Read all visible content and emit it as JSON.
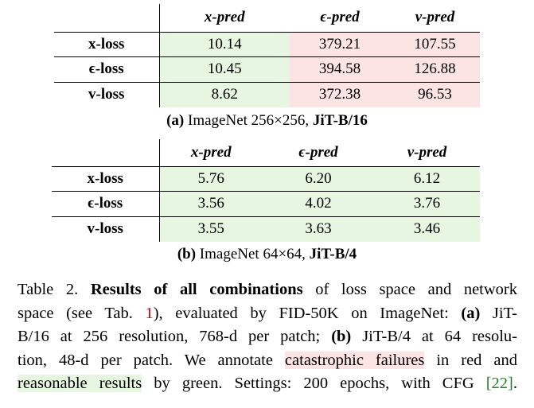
{
  "tables": [
    {
      "headers": [
        "x-pred",
        "ϵ-pred",
        "v-pred"
      ],
      "rows": [
        {
          "label": "x-loss",
          "cells": [
            "10.14",
            "379.21",
            "107.55"
          ]
        },
        {
          "label": "ϵ-loss",
          "cells": [
            "10.45",
            "394.58",
            "126.88"
          ]
        },
        {
          "label": "v-loss",
          "cells": [
            "8.62",
            "372.38",
            "96.53"
          ]
        }
      ],
      "cell_colors": [
        [
          "#e6f6e1",
          "#fde4e4",
          "#fde4e4"
        ],
        [
          "#e6f6e1",
          "#fde4e4",
          "#fde4e4"
        ],
        [
          "#e6f6e1",
          "#fde4e4",
          "#fde4e4"
        ]
      ],
      "caption": [
        "(a)",
        " ImageNet 256×256, ",
        "JiT-B/16"
      ]
    },
    {
      "headers": [
        "x-pred",
        "ϵ-pred",
        "v-pred"
      ],
      "rows": [
        {
          "label": "x-loss",
          "cells": [
            "5.76",
            "6.20",
            "6.12"
          ]
        },
        {
          "label": "ϵ-loss",
          "cells": [
            "3.56",
            "4.02",
            "3.76"
          ]
        },
        {
          "label": "v-loss",
          "cells": [
            "3.55",
            "3.63",
            "3.46"
          ]
        }
      ],
      "cell_colors": [
        [
          "#e6f6e1",
          "#e6f6e1",
          "#e6f6e1"
        ],
        [
          "#e6f6e1",
          "#e6f6e1",
          "#e6f6e1"
        ],
        [
          "#e6f6e1",
          "#e6f6e1",
          "#e6f6e1"
        ]
      ],
      "caption": [
        "(b)",
        " ImageNet 64×64, ",
        "JiT-B/4"
      ]
    }
  ],
  "caption": {
    "lines": [
      [
        "Table 2. ",
        "Results of all combinations",
        " of loss space and network"
      ],
      [
        "space (see Tab. ",
        "1",
        "), evaluated by FID-50K on ImageNet: ",
        "(a)",
        " JiT-"
      ],
      [
        "B/16 at 256 resolution, 768-d per patch; ",
        "(b)",
        " JiT-B/4 at 64 resolu-"
      ],
      [
        "tion, 48-d per patch. We annotate ",
        "catastrophic failures",
        " in red and"
      ],
      [
        "reasonable results",
        " by green. Settings: 200 epochs, with CFG ",
        "[22]",
        "."
      ]
    ]
  }
}
